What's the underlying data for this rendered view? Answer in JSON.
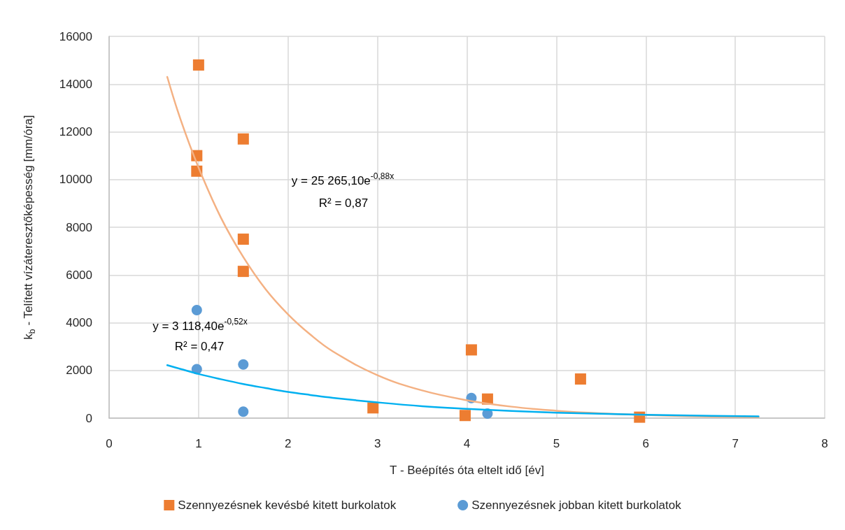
{
  "chart_data": {
    "type": "scatter",
    "xlabel": "T - Beépítés óta eltelt idő [év]",
    "ylabel": "k$_{b}$ - Telített vízáteresztőképesség [mm/óra]",
    "xlim": [
      0,
      8
    ],
    "xticks": [
      0,
      1,
      2,
      3,
      4,
      5,
      6,
      7,
      8
    ],
    "ylim": [
      0,
      16000
    ],
    "yticks": [
      0,
      2000,
      4000,
      6000,
      8000,
      10000,
      12000,
      14000,
      16000
    ],
    "grid": true,
    "legend": "bottom",
    "series": [
      {
        "name": "Szennyezésnek kevésbé kitett burkolatok",
        "marker": "square",
        "color": "#ed7d31",
        "x": [
          1.0,
          1.5,
          0.98,
          0.98,
          1.5,
          1.5,
          2.95,
          4.05,
          4.23,
          3.98,
          5.27,
          5.93
        ],
        "values": [
          14800,
          11700,
          11000,
          10350,
          7500,
          6150,
          430,
          2860,
          800,
          110,
          1640,
          40
        ]
      },
      {
        "name": "Szennyezésnek jobban kitett burkolatok",
        "marker": "circle",
        "color": "#5b9bd5",
        "x": [
          0.98,
          0.98,
          1.5,
          1.5,
          4.05,
          4.23
        ],
        "values": [
          4530,
          2050,
          2250,
          270,
          840,
          190
        ]
      },
      {
        "type": "line",
        "marker": "none",
        "color": "#f4b183",
        "x": [
          0.65,
          0.8,
          1,
          1.25,
          1.5,
          1.75,
          2,
          2.25,
          2.5,
          3,
          3.5,
          4,
          4.5,
          5,
          5.5,
          6,
          6.5,
          7.26
        ],
        "values": [
          14300,
          12500,
          10500,
          8400,
          6750,
          5400,
          4350,
          3500,
          2800,
          1800,
          1160,
          750,
          480,
          310,
          200,
          130,
          80,
          40
        ]
      },
      {
        "type": "line",
        "marker": "none",
        "color": "#00b0f0",
        "x": [
          0.65,
          0.8,
          1,
          1.25,
          1.5,
          1.75,
          2,
          2.25,
          2.5,
          3,
          3.5,
          4,
          4.5,
          5,
          5.5,
          6,
          6.5,
          7.26
        ],
        "values": [
          2220,
          2060,
          1850,
          1630,
          1430,
          1260,
          1100,
          970,
          850,
          660,
          500,
          390,
          300,
          230,
          180,
          140,
          110,
          70
        ]
      }
    ],
    "annotations": [
      "y = 25 265,10e$^{-0,88x}$",
      "R² = 0,87",
      "y = 3 118,40e$^{-0,52x}$",
      "R² = 0,47"
    ]
  }
}
